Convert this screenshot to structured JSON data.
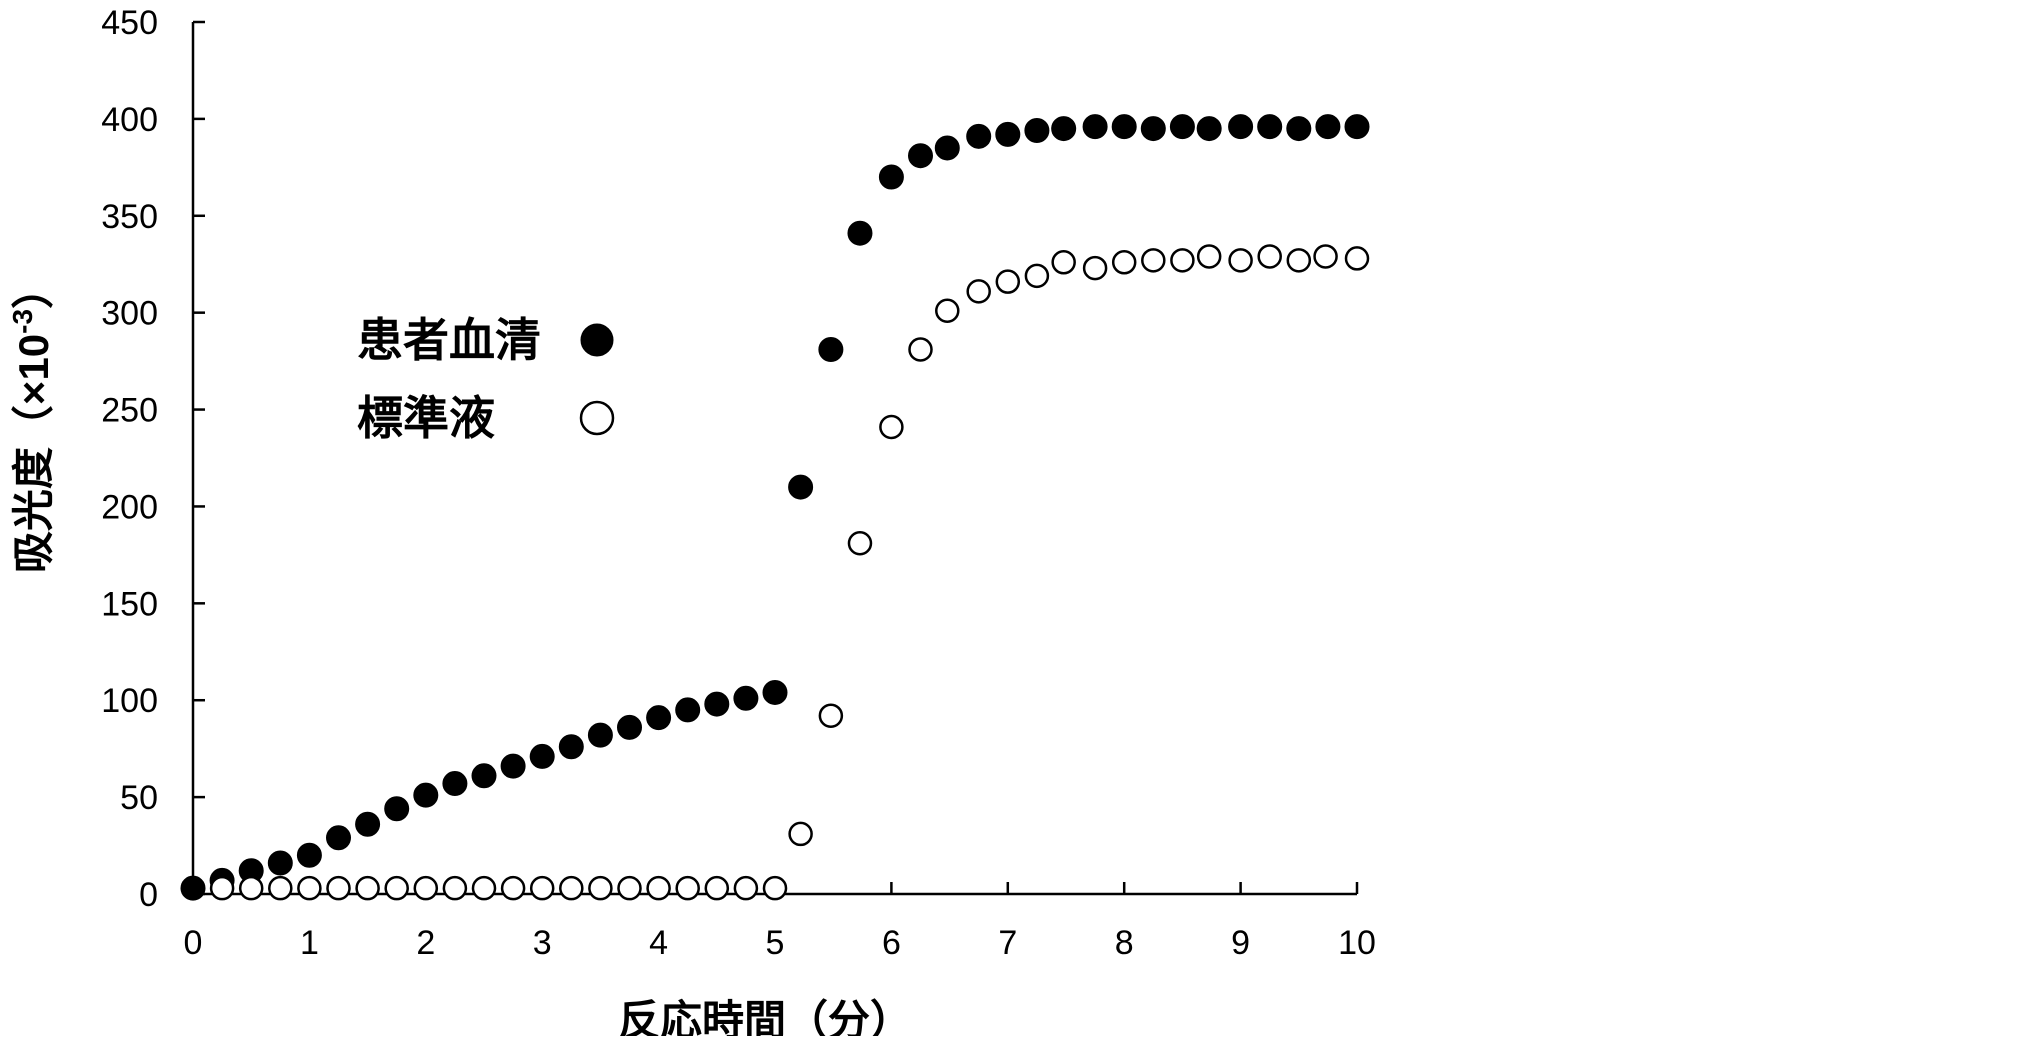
{
  "chart_data": {
    "type": "scatter",
    "xlabel": "反応時間（分）",
    "ylabel": "吸光度（×10",
    "ylabel_exponent": "-3",
    "ylabel_close": "）",
    "xlim": [
      0,
      10
    ],
    "ylim": [
      0,
      450
    ],
    "x_ticks": [
      "0",
      "1",
      "2",
      "3",
      "4",
      "5",
      "6",
      "7",
      "8",
      "9",
      "10"
    ],
    "y_ticks": [
      "0",
      "50",
      "100",
      "150",
      "200",
      "250",
      "300",
      "350",
      "400",
      "450"
    ],
    "grid": false,
    "legend_position": "left-center",
    "series": [
      {
        "name": "患者血清",
        "marker": "filled-circle",
        "color": "#000000",
        "x": [
          0,
          0.25,
          0.5,
          0.75,
          1.0,
          1.25,
          1.5,
          1.75,
          2.0,
          2.25,
          2.5,
          2.75,
          3.0,
          3.25,
          3.5,
          3.75,
          4.0,
          4.25,
          4.5,
          4.75,
          5.0,
          5.22,
          5.48,
          5.73,
          6.0,
          6.25,
          6.48,
          6.75,
          7.0,
          7.25,
          7.48,
          7.75,
          8.0,
          8.25,
          8.5,
          8.73,
          9.0,
          9.25,
          9.5,
          9.75,
          10.0
        ],
        "y": [
          3,
          7,
          12,
          16,
          20,
          29,
          36,
          44,
          51,
          57,
          61,
          66,
          71,
          76,
          82,
          86,
          91,
          95,
          98,
          101,
          104,
          210,
          281,
          341,
          370,
          381,
          385,
          391,
          392,
          394,
          395,
          396,
          396,
          395,
          396,
          395,
          396,
          396,
          395,
          396,
          396
        ]
      },
      {
        "name": "標準液",
        "marker": "open-circle",
        "color": "#000000",
        "x": [
          0.25,
          0.5,
          0.75,
          1.0,
          1.25,
          1.5,
          1.75,
          2.0,
          2.25,
          2.5,
          2.75,
          3.0,
          3.25,
          3.5,
          3.75,
          4.0,
          4.25,
          4.5,
          4.75,
          5.0,
          5.22,
          5.48,
          5.73,
          6.0,
          6.25,
          6.48,
          6.75,
          7.0,
          7.25,
          7.48,
          7.75,
          8.0,
          8.25,
          8.5,
          8.73,
          9.0,
          9.25,
          9.5,
          9.73,
          10.0
        ],
        "y": [
          3,
          3,
          3,
          3,
          3,
          3,
          3,
          3,
          3,
          3,
          3,
          3,
          3,
          3,
          3,
          3,
          3,
          3,
          3,
          3,
          31,
          92,
          181,
          241,
          281,
          301,
          311,
          316,
          319,
          326,
          323,
          326,
          327,
          327,
          329,
          327,
          329,
          327,
          329,
          328
        ]
      }
    ]
  }
}
